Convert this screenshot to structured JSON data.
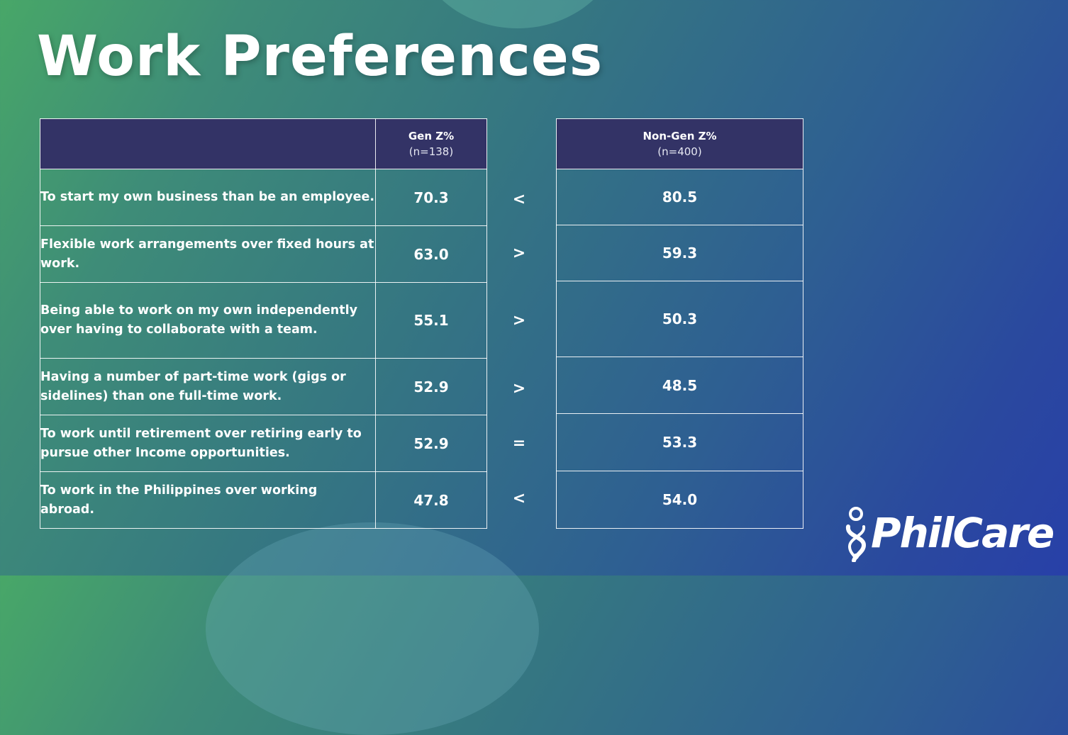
{
  "title": "Work Preferences",
  "table": {
    "columns": {
      "genz": {
        "label": "Gen Z%",
        "n": "(n=138)"
      },
      "nongenz": {
        "label": "Non-Gen Z%",
        "n": "(n=400)"
      }
    },
    "rows": [
      {
        "label": "To start my own business than be an employee.",
        "genz": "70.3",
        "compare": "<",
        "nongenz": "80.5"
      },
      {
        "label": "Flexible work arrangements over fixed hours at work.",
        "genz": "63.0",
        "compare": ">",
        "nongenz": "59.3"
      },
      {
        "label": "Being able to work on my own independently over having to collaborate with a team.",
        "genz": "55.1",
        "compare": ">",
        "nongenz": "50.3"
      },
      {
        "label": "Having a number of part-time work (gigs or sidelines) than one full-time work.",
        "genz": "52.9",
        "compare": ">",
        "nongenz": "48.5"
      },
      {
        "label": "To work until retirement over retiring early to pursue other Income opportunities.",
        "genz": "52.9",
        "compare": "=",
        "nongenz": "53.3"
      },
      {
        "label": "To work in the Philippines over working abroad.",
        "genz": "47.8",
        "compare": "<",
        "nongenz": "54.0"
      }
    ]
  },
  "logo": {
    "text": "PhilCare",
    "icon": "philcare-figure-icon"
  },
  "colors": {
    "header_bg": "#333366",
    "text": "#ffffff"
  }
}
